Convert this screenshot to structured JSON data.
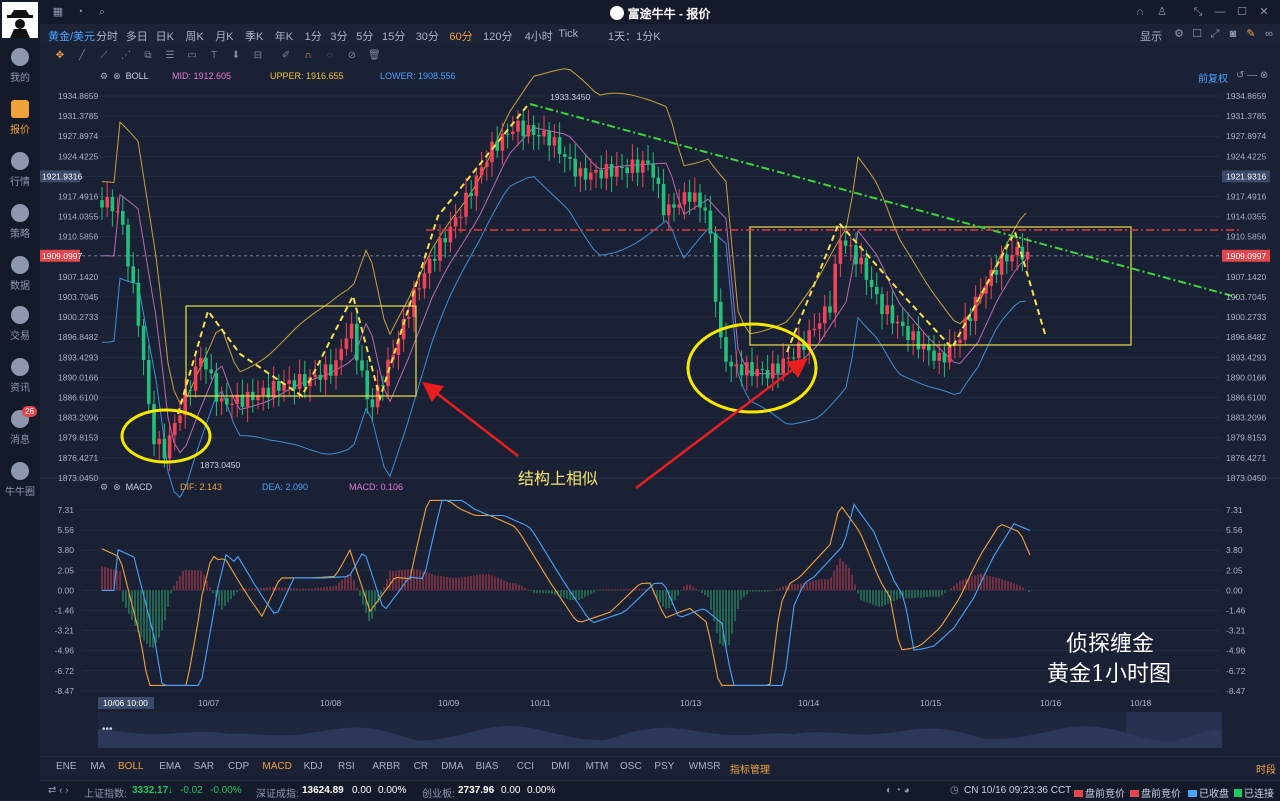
{
  "window": {
    "title": "富途牛牛 - 报价"
  },
  "nav": [
    {
      "label": "我的",
      "icon": "person-icon"
    },
    {
      "label": "报价",
      "icon": "quote-chart-icon",
      "active": true
    },
    {
      "label": "行情",
      "icon": "market-icon"
    },
    {
      "label": "策略",
      "icon": "strategy-icon"
    },
    {
      "label": "数据",
      "icon": "database-icon"
    },
    {
      "label": "交易",
      "icon": "trade-icon"
    },
    {
      "label": "资讯",
      "icon": "news-icon"
    },
    {
      "label": "消息",
      "icon": "message-icon",
      "badge": "26"
    },
    {
      "label": "牛牛圈",
      "icon": "community-icon"
    }
  ],
  "toolbar": {
    "symbol": "黄金/美元",
    "periods": [
      "分时",
      "多日",
      "日K",
      "周K",
      "月K",
      "季K",
      "年K",
      "1分",
      "3分",
      "5分",
      "15分",
      "30分",
      "60分",
      "120分",
      "4小时",
      "Tick",
      "1天：1分K"
    ],
    "selected_period": "60分",
    "display_label": "显示",
    "adjust_label": "前复权"
  },
  "boll": {
    "name": "BOLL",
    "mid": "MID: 1912.605",
    "upper": "UPPER: 1916.655",
    "lower": "LOWER: 1908.556"
  },
  "macd": {
    "name": "MACD",
    "dif": "DIF: 2.143",
    "dea": "DEA: 2.090",
    "macd": "MACD: 0.106"
  },
  "price_axis": [
    "1934.8659",
    "1931.3785",
    "1927.8974",
    "1924.4225",
    "1921.9316",
    "1917.4916",
    "1914.0355",
    "1910.5856",
    "1909.0997",
    "1907.1420",
    "1903.7045",
    "1900.2733",
    "1896.8482",
    "1893.4293",
    "1890.0166",
    "1886.6100",
    "1883.2096",
    "1879.8153",
    "1876.4271",
    "1873.0450"
  ],
  "current_price": "1921.9316",
  "crosshair_price": "1909.0997",
  "macd_axis": [
    "7.31",
    "5.56",
    "3.80",
    "2.05",
    "0.00",
    "-1.46",
    "-3.21",
    "-4.96",
    "-6.72",
    "-8.47"
  ],
  "date_labels": [
    "10/06 10:00",
    "10/07",
    "10/08",
    "10/09",
    "10/11",
    "10/13",
    "10/14",
    "10/15",
    "10/16",
    "10/18"
  ],
  "chart_labels": {
    "high": "1933.3450",
    "low": "1873.0450"
  },
  "annotation": {
    "similar": "结构上相似",
    "brand": "侦探缠金",
    "subtitle": "黄金1小时图"
  },
  "indicator_tabs": [
    "ENE",
    "MA",
    "BOLL",
    "EMA",
    "SAR",
    "CDP",
    "MACD",
    "KDJ",
    "RSI",
    "ARBR",
    "CR",
    "DMA",
    "BIAS",
    "CCI",
    "DMI",
    "MTM",
    "OSC",
    "PSY",
    "WMSR",
    "指标管理"
  ],
  "indicator_tabs_selected": [
    "BOLL",
    "MACD"
  ],
  "time_label": "时段",
  "status": {
    "sh_label": "上证指数:",
    "sh_value": "3332.17",
    "sh_arrow": "↓",
    "sh_chg": "-0.02",
    "sh_pct": "-0.00%",
    "sz_label": "深证成指:",
    "sz_value": "13624.89",
    "sz_chg": "0.00",
    "sz_pct": "0.00%",
    "cy_label": "创业板:",
    "cy_value": "2737.96",
    "cy_chg": "0.00",
    "cy_pct": "0.00%",
    "clock": "CN 10/16 09:23:36 CCT",
    "m1": "盘前竞价",
    "m2": "盘前竞价",
    "m3": "已收盘",
    "m4": "已连接"
  },
  "chart_data": {
    "type": "candlestick",
    "note_free": true,
    "series": [
      {
        "name": "BOLL",
        "values": []
      }
    ]
  }
}
